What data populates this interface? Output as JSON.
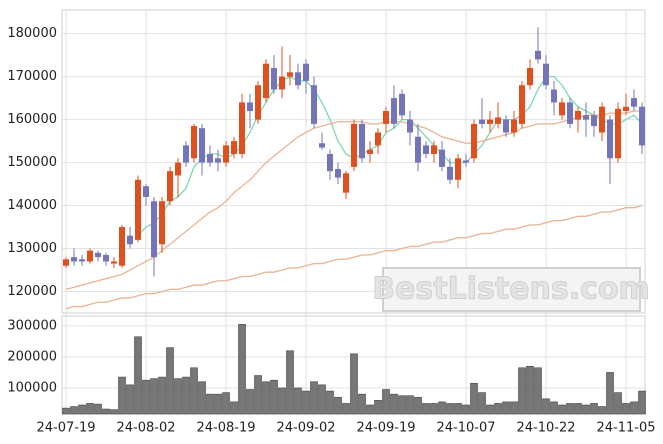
{
  "chart_data": [
    {
      "type": "candlestick",
      "watermark": "BestListens.com",
      "up_color": "#e0501e",
      "down_color": "#7474b8",
      "grid": true,
      "ylim": [
        115000,
        185500
      ],
      "yticks": [
        120000,
        130000,
        140000,
        150000,
        160000,
        170000,
        180000
      ],
      "open": [
        126000,
        128000,
        127500,
        127000,
        129000,
        128500,
        126500,
        126000,
        133000,
        132000,
        144500,
        141000,
        131000,
        141000,
        147000,
        154000,
        151000,
        158000,
        152000,
        151000,
        150000,
        152000,
        152000,
        164000,
        160000,
        165000,
        172000,
        167000,
        170000,
        171000,
        173000,
        168000,
        154500,
        152000,
        148500,
        143000,
        149000,
        159000,
        152000,
        154000,
        159000,
        165000,
        166000,
        160000,
        156000,
        154000,
        152000,
        153000,
        149000,
        146000,
        150500,
        151000,
        160000,
        159000,
        159000,
        160000,
        157000,
        159000,
        168000,
        176000,
        173000,
        167000,
        161000,
        164000,
        160000,
        161000,
        161000,
        157000,
        160000,
        151000,
        162000,
        165000,
        163000
      ],
      "high": [
        128000,
        130000,
        128500,
        130000,
        129500,
        129000,
        128000,
        135500,
        135000,
        147000,
        145000,
        142000,
        142000,
        149000,
        151000,
        155000,
        159000,
        159000,
        154000,
        153000,
        155000,
        156000,
        166000,
        166000,
        169000,
        174000,
        175000,
        177000,
        175000,
        173000,
        174000,
        170000,
        157000,
        153000,
        150000,
        148000,
        160000,
        160000,
        155000,
        158000,
        163000,
        168000,
        167000,
        162000,
        159000,
        155000,
        155000,
        155000,
        151000,
        152000,
        152000,
        160000,
        165000,
        162000,
        164000,
        161000,
        162000,
        169000,
        174000,
        181500,
        175000,
        169000,
        165000,
        165000,
        163000,
        164000,
        162000,
        164000,
        161000,
        164000,
        166000,
        167000,
        164000
      ],
      "low": [
        125500,
        126000,
        126000,
        126500,
        127000,
        126000,
        125500,
        125500,
        130000,
        131500,
        140000,
        123500,
        129000,
        140000,
        142000,
        149000,
        150000,
        147000,
        149000,
        148000,
        149000,
        151000,
        151000,
        158000,
        159000,
        164000,
        166000,
        165000,
        168000,
        167000,
        166000,
        158000,
        153000,
        146000,
        145000,
        141500,
        148000,
        150000,
        150000,
        152000,
        157000,
        158000,
        160000,
        154000,
        148000,
        151000,
        150000,
        148000,
        145000,
        144000,
        149000,
        150000,
        158000,
        157000,
        158000,
        156000,
        156000,
        158000,
        167000,
        173000,
        167000,
        161000,
        160000,
        158000,
        157000,
        156000,
        156000,
        155000,
        145000,
        150000,
        161000,
        162000,
        152000
      ],
      "close": [
        127500,
        127000,
        127000,
        129500,
        128000,
        127000,
        127000,
        135000,
        131000,
        146000,
        142000,
        128000,
        141000,
        148000,
        150000,
        150000,
        158500,
        150000,
        150000,
        150000,
        154000,
        155000,
        164000,
        162000,
        168000,
        173000,
        167000,
        170000,
        171000,
        168000,
        169000,
        159000,
        153500,
        148000,
        146500,
        147500,
        159000,
        151000,
        153000,
        157000,
        162000,
        159000,
        161000,
        157000,
        150000,
        152000,
        154000,
        149000,
        146000,
        151000,
        150000,
        159000,
        159000,
        160000,
        160500,
        157000,
        160000,
        168000,
        172000,
        174000,
        168000,
        164000,
        164000,
        159000,
        162000,
        160000,
        158500,
        163000,
        151000,
        162500,
        163000,
        163000,
        154000
      ],
      "lines": [
        {
          "color": "#7fd6b4",
          "values": [
            null,
            null,
            null,
            null,
            null,
            null,
            null,
            null,
            null,
            133000,
            135000,
            136000,
            138000,
            141000,
            142000,
            144000,
            149000,
            151000,
            152000,
            152000,
            151000,
            152000,
            154000,
            157000,
            161000,
            164000,
            167000,
            169000,
            170000,
            169000,
            169000,
            167000,
            164000,
            160000,
            155000,
            152000,
            151000,
            152000,
            153000,
            154000,
            157000,
            158000,
            160000,
            160000,
            158000,
            156000,
            154000,
            152000,
            150000,
            150000,
            150000,
            152000,
            154000,
            157000,
            160000,
            160000,
            160000,
            161000,
            163000,
            167000,
            170000,
            170000,
            168000,
            165000,
            163000,
            162000,
            161000,
            160000,
            159000,
            159000,
            160000,
            161000,
            159000
          ]
        },
        {
          "color": "#eab394",
          "values": [
            120500,
            121000,
            121500,
            122000,
            122500,
            123000,
            123500,
            124000,
            125000,
            126000,
            127000,
            128000,
            129500,
            131000,
            132500,
            134000,
            135500,
            137000,
            138500,
            139500,
            141000,
            143000,
            144500,
            146000,
            148000,
            150000,
            151500,
            153000,
            154500,
            156000,
            157000,
            158000,
            158500,
            159000,
            159500,
            159500,
            159500,
            159500,
            159000,
            159000,
            159500,
            159500,
            159500,
            159000,
            158500,
            158000,
            157000,
            156000,
            155500,
            155000,
            154500,
            154500,
            155000,
            155500,
            156000,
            156500,
            157000,
            158000,
            158500,
            159000,
            159000,
            159000,
            159500,
            160000,
            160500,
            161000,
            161000,
            161000,
            161500,
            161500,
            161500,
            162000,
            162000
          ]
        },
        {
          "color": "#eab394",
          "values": [
            116000,
            116500,
            116500,
            117000,
            117500,
            117500,
            118000,
            118500,
            118500,
            119000,
            119500,
            119500,
            120000,
            120500,
            120500,
            121000,
            121500,
            121500,
            122000,
            122500,
            122500,
            123000,
            123500,
            123500,
            124000,
            124500,
            124500,
            125000,
            125500,
            125500,
            126000,
            126500,
            126500,
            127000,
            127500,
            127500,
            128000,
            128500,
            128500,
            129000,
            129500,
            129500,
            130000,
            130500,
            130500,
            131000,
            131500,
            131500,
            132000,
            132500,
            132500,
            133000,
            133500,
            133500,
            134000,
            134500,
            134500,
            135000,
            135500,
            135500,
            136000,
            136500,
            136500,
            137000,
            137500,
            137500,
            138000,
            138500,
            138500,
            139000,
            139500,
            139500,
            140000
          ]
        }
      ]
    },
    {
      "type": "bar",
      "color": "#777777",
      "grid": true,
      "ylim": [
        16000,
        332000
      ],
      "yticks": [
        100000,
        200000,
        300000
      ],
      "categories": [
        "24-07-19",
        null,
        null,
        null,
        null,
        null,
        null,
        null,
        null,
        null,
        "24-08-02",
        null,
        null,
        null,
        null,
        null,
        null,
        null,
        null,
        null,
        "24-08-19",
        null,
        null,
        null,
        null,
        null,
        null,
        null,
        null,
        null,
        "24-09-02",
        null,
        null,
        null,
        null,
        null,
        null,
        null,
        null,
        null,
        "24-09-19",
        null,
        null,
        null,
        null,
        null,
        null,
        null,
        null,
        null,
        "24-10-07",
        null,
        null,
        null,
        null,
        null,
        null,
        null,
        null,
        null,
        "24-10-22",
        null,
        null,
        null,
        null,
        null,
        null,
        null,
        null,
        null,
        "24-11-05",
        null,
        null
      ],
      "values": [
        35000,
        40000,
        45000,
        50000,
        48000,
        32000,
        30000,
        135000,
        110000,
        265000,
        125000,
        130000,
        135000,
        230000,
        130000,
        135000,
        165000,
        120000,
        80000,
        80000,
        85000,
        55000,
        305000,
        95000,
        140000,
        120000,
        125000,
        100000,
        220000,
        100000,
        90000,
        120000,
        110000,
        90000,
        70000,
        50000,
        210000,
        80000,
        45000,
        60000,
        95000,
        80000,
        75000,
        75000,
        70000,
        50000,
        50000,
        55000,
        50000,
        50000,
        45000,
        115000,
        85000,
        45000,
        50000,
        55000,
        55000,
        165000,
        170000,
        165000,
        65000,
        55000,
        45000,
        50000,
        50000,
        45000,
        50000,
        40000,
        150000,
        85000,
        50000,
        55000,
        90000
      ]
    }
  ]
}
